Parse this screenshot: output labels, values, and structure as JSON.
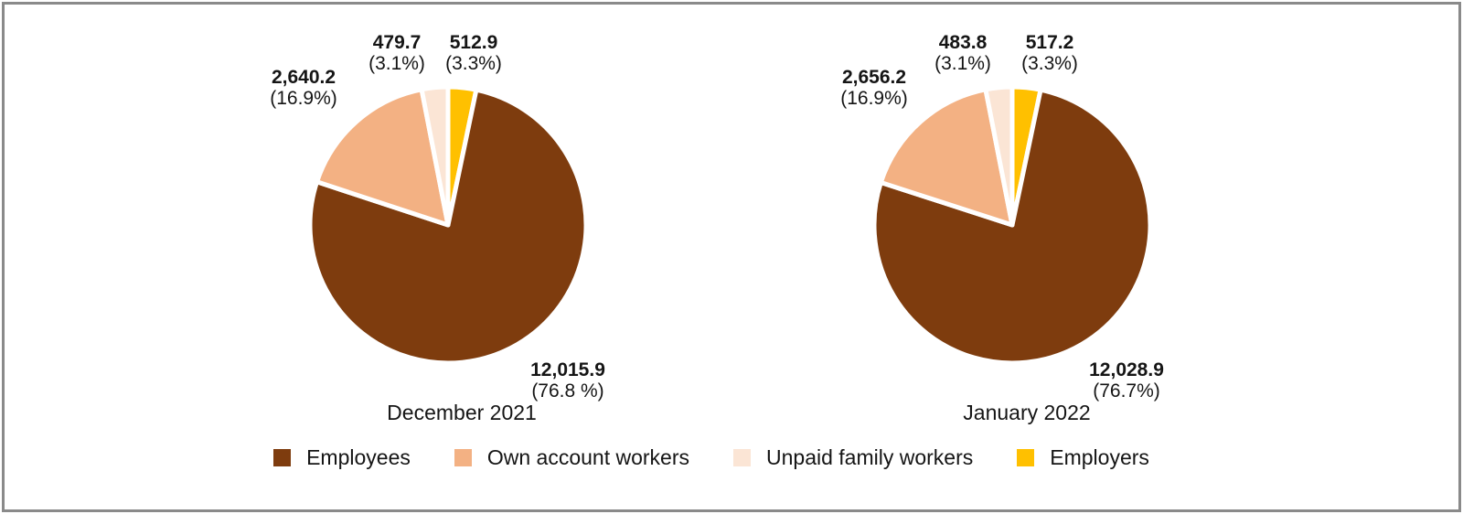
{
  "frame": {
    "background": "#ffffff",
    "border_color": "#8a8a8a"
  },
  "colors": {
    "employees": "#7E3C0E",
    "own_account_workers": "#F3B183",
    "unpaid_family_workers": "#FBE5D5",
    "employers": "#FFC000",
    "slice_separator": "#FFFFFF",
    "text": "#151515"
  },
  "chart_data": [
    {
      "type": "pie",
      "title": "December 2021",
      "legend_position": "bottom",
      "direction": "clockwise",
      "start_angle_deg": 0,
      "draw_order": [
        3,
        0,
        1,
        2
      ],
      "slices": [
        {
          "label": "Employees",
          "value": 12015.9,
          "display": "12,015.9",
          "pct": "(76.8 %)",
          "color": "#7E3C0E"
        },
        {
          "label": "Own account workers",
          "value": 2640.2,
          "display": "2,640.2",
          "pct": "(16.9%)",
          "color": "#F3B183"
        },
        {
          "label": "Unpaid family workers",
          "value": 479.7,
          "display": "479.7",
          "pct": "(3.1%)",
          "color": "#FBE5D5"
        },
        {
          "label": "Employers",
          "value": 512.9,
          "display": "512.9",
          "pct": "(3.3%)",
          "color": "#FFC000"
        }
      ]
    },
    {
      "type": "pie",
      "title": "January 2022",
      "legend_position": "bottom",
      "direction": "clockwise",
      "start_angle_deg": 0,
      "draw_order": [
        3,
        0,
        1,
        2
      ],
      "slices": [
        {
          "label": "Employees",
          "value": 12028.9,
          "display": "12,028.9",
          "pct": "(76.7%)",
          "color": "#7E3C0E"
        },
        {
          "label": "Own account workers",
          "value": 2656.2,
          "display": "2,656.2",
          "pct": "(16.9%)",
          "color": "#F3B183"
        },
        {
          "label": "Unpaid family workers",
          "value": 483.8,
          "display": "483.8",
          "pct": "(3.1%)",
          "color": "#FBE5D5"
        },
        {
          "label": "Employers",
          "value": 517.2,
          "display": "517.2",
          "pct": "(3.3%)",
          "color": "#FFC000"
        }
      ]
    }
  ],
  "legend": {
    "items": [
      {
        "label": "Employees",
        "color": "#7E3C0E"
      },
      {
        "label": "Own account workers",
        "color": "#F3B183"
      },
      {
        "label": "Unpaid family workers",
        "color": "#FBE5D5"
      },
      {
        "label": "Employers",
        "color": "#FFC000"
      }
    ]
  }
}
